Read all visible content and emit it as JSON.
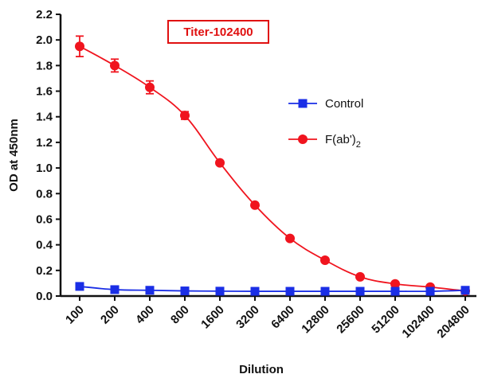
{
  "chart_data": {
    "type": "line",
    "xlabel": "Dilution",
    "ylabel": "OD at 450nm",
    "ylim": [
      0,
      2.2
    ],
    "yticks": [
      "0.0",
      "0.2",
      "0.4",
      "0.6",
      "0.8",
      "1.0",
      "1.2",
      "1.4",
      "1.6",
      "1.8",
      "2.0",
      "2.2"
    ],
    "categories": [
      "100",
      "200",
      "400",
      "800",
      "1600",
      "3200",
      "6400",
      "12800",
      "25600",
      "51200",
      "102400",
      "204800"
    ],
    "annotation": "Titer-102400",
    "legend_position": "right",
    "series": [
      {
        "name": "Control",
        "legend_main": "Control",
        "legend_sub": "",
        "color": "#1a2ee6",
        "marker": "square",
        "values": [
          0.075,
          0.05,
          0.045,
          0.04,
          0.038,
          0.037,
          0.037,
          0.037,
          0.037,
          0.037,
          0.037,
          0.045
        ],
        "errors": [
          0,
          0,
          0,
          0,
          0,
          0,
          0,
          0,
          0,
          0,
          0,
          0
        ]
      },
      {
        "name": "F(ab')2",
        "legend_main": "F(ab')",
        "legend_sub": "2",
        "color": "#f0141e",
        "marker": "circle",
        "values": [
          1.95,
          1.8,
          1.63,
          1.41,
          1.04,
          0.71,
          0.45,
          0.28,
          0.15,
          0.095,
          0.07,
          0.04
        ],
        "errors": [
          0.08,
          0.05,
          0.05,
          0.03,
          0,
          0,
          0,
          0,
          0,
          0,
          0,
          0
        ]
      }
    ]
  }
}
